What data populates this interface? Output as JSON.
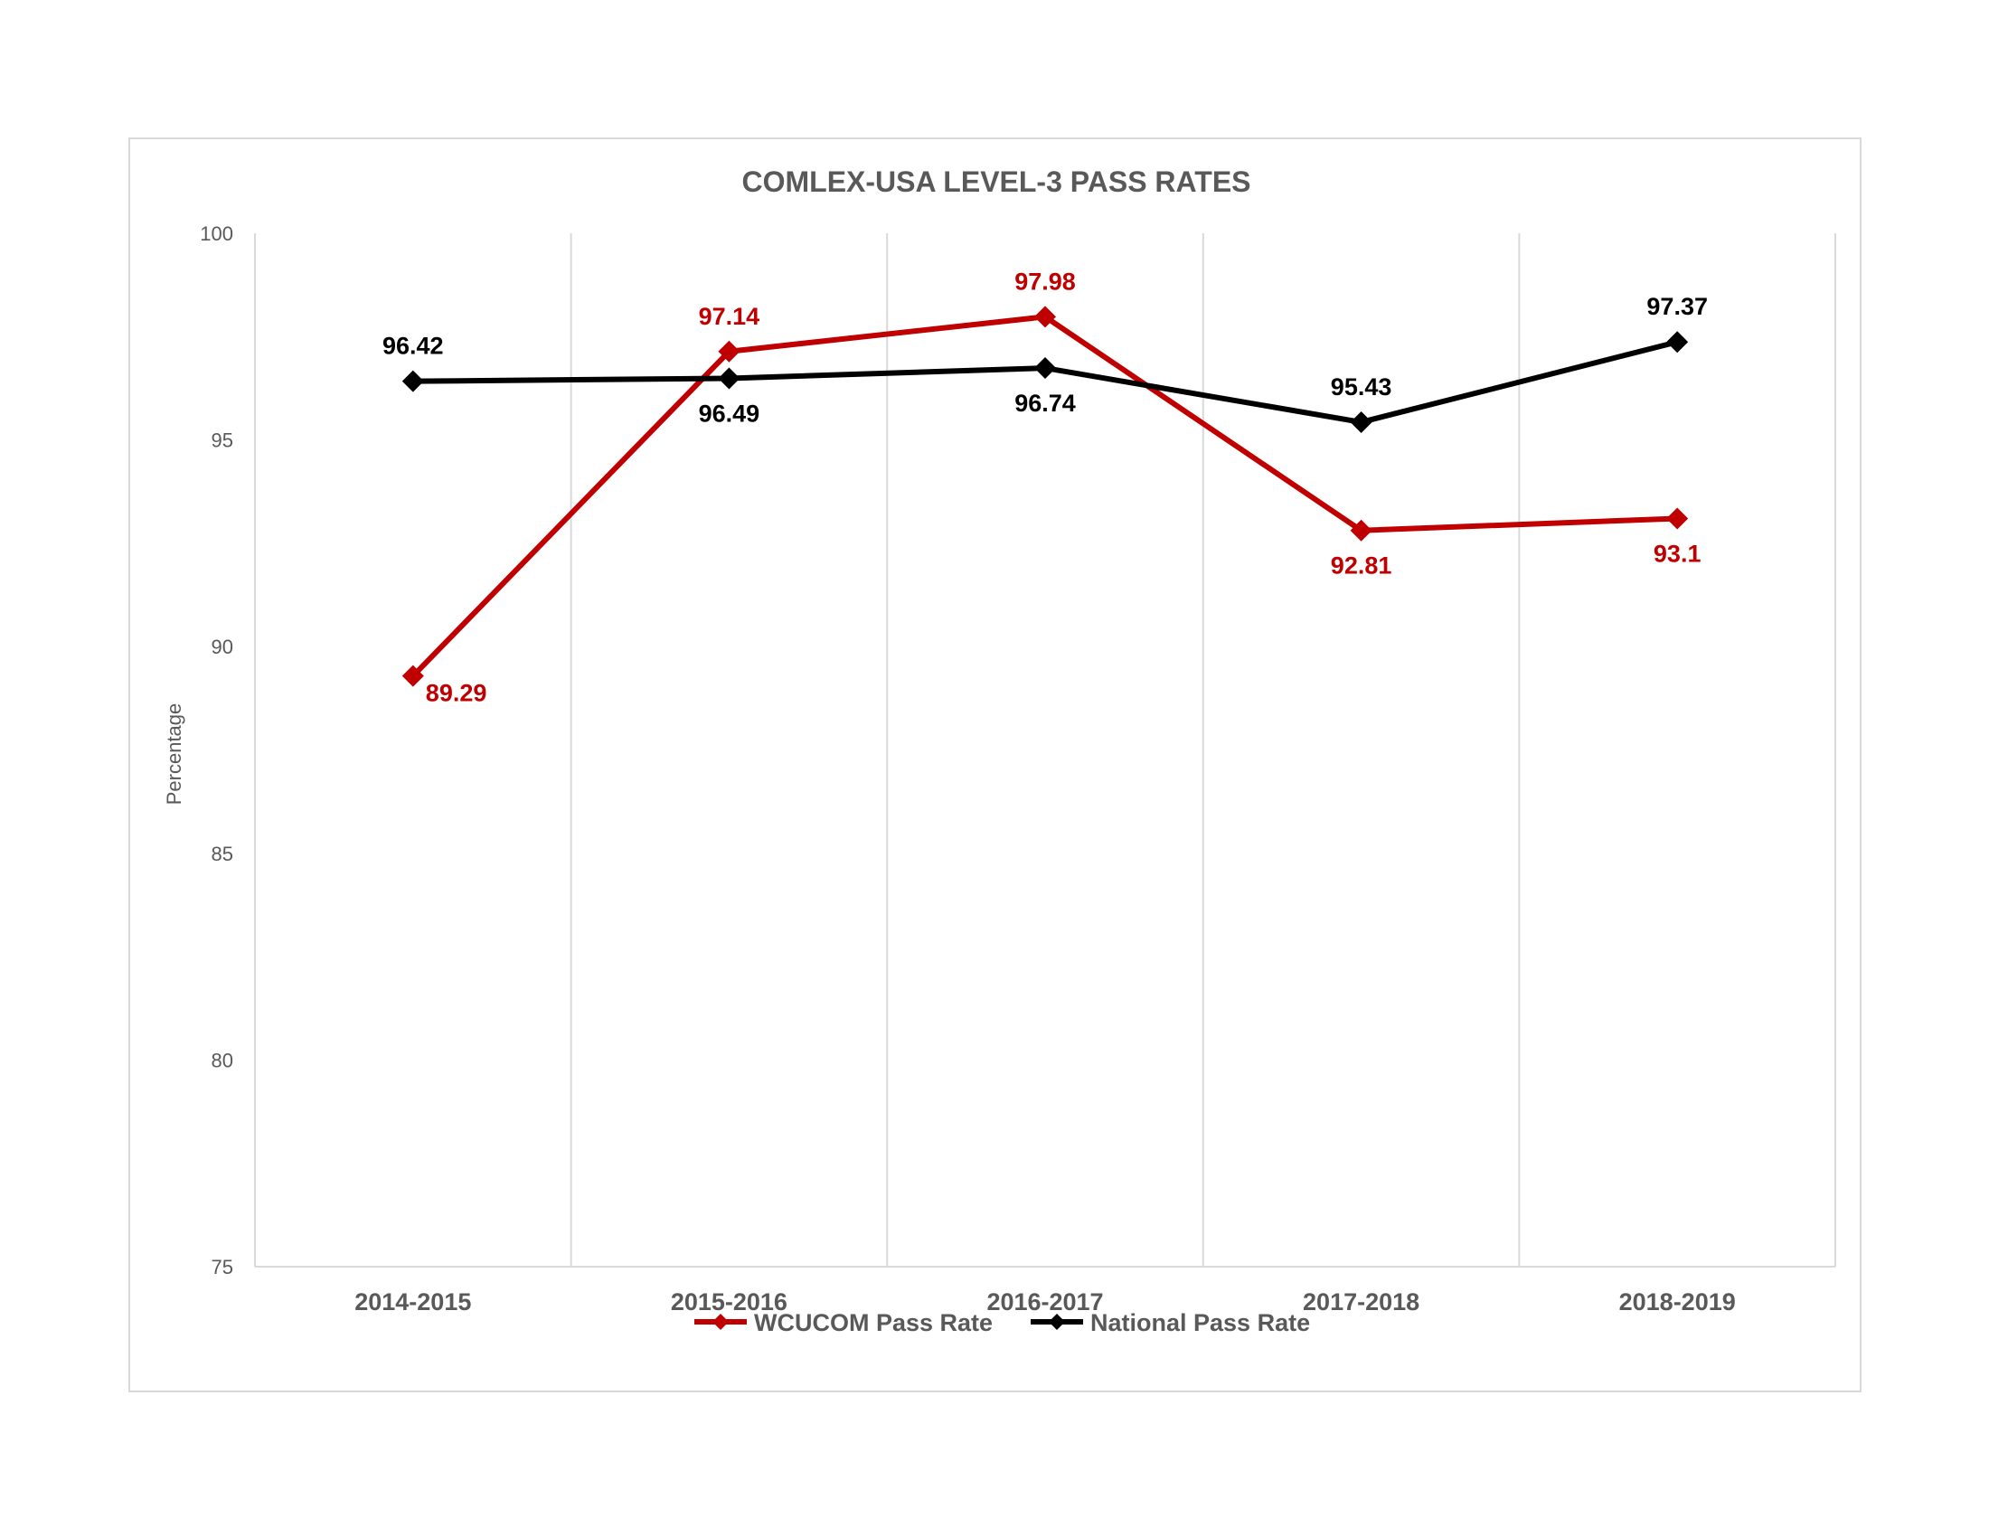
{
  "chart_data": {
    "type": "line",
    "title": "COMLEX-USA LEVEL-3 PASS RATES",
    "xlabel": "",
    "ylabel": "Percentage",
    "categories": [
      "2014-2015",
      "2015-2016",
      "2016-2017",
      "2017-2018",
      "2018-2019"
    ],
    "ylim": [
      75,
      100
    ],
    "yticks": [
      75,
      80,
      85,
      90,
      95,
      100
    ],
    "grid": "vertical",
    "legend": "bottom",
    "series": [
      {
        "name": "WCUCOM Pass Rate",
        "color": "#c00000",
        "values": [
          89.29,
          97.14,
          97.98,
          92.81,
          93.1
        ],
        "labels": [
          "89.29",
          "97.14",
          "97.98",
          "92.81",
          "93.1"
        ],
        "label_positions": [
          "below-right",
          "above",
          "above",
          "below",
          "below"
        ]
      },
      {
        "name": "National Pass Rate",
        "color": "#000000",
        "values": [
          96.42,
          96.49,
          96.74,
          95.43,
          97.37
        ],
        "labels": [
          "96.42",
          "96.49",
          "96.74",
          "95.43",
          "97.37"
        ],
        "label_positions": [
          "above",
          "below",
          "below",
          "above",
          "above"
        ]
      }
    ]
  }
}
